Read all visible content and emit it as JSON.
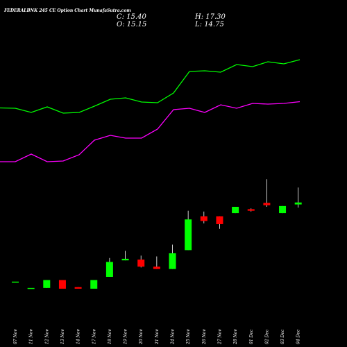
{
  "header": {
    "title": "FEDERALBNK 245 CE Option  Chart MunafaSutra.com",
    "close": "C: 15.40",
    "high": "H: 17.30",
    "open": "O: 15.15",
    "low": "L: 14.75"
  },
  "chart_data": {
    "type": "candlestick",
    "dates": [
      "07 Nov",
      "11 Nov",
      "12 Nov",
      "13 Nov",
      "14 Nov",
      "17 Nov",
      "18 Nov",
      "19 Nov",
      "20 Nov",
      "21 Nov",
      "24 Nov",
      "25 Nov",
      "26 Nov",
      "27 Nov",
      "28 Nov",
      "01 Dec",
      "02 Dec",
      "03 Dec",
      "04 Dec"
    ],
    "candles": [
      {
        "o": 5.35,
        "h": 5.35,
        "l": 5.35,
        "c": 5.35
      },
      {
        "o": 4.55,
        "h": 4.55,
        "l": 4.55,
        "c": 4.55
      },
      {
        "o": 4.55,
        "h": 5.55,
        "l": 4.55,
        "c": 5.55
      },
      {
        "o": 5.55,
        "h": 5.55,
        "l": 4.45,
        "c": 4.45
      },
      {
        "o": 4.65,
        "h": 4.65,
        "l": 4.45,
        "c": 4.45
      },
      {
        "o": 4.45,
        "h": 5.55,
        "l": 4.45,
        "c": 5.55
      },
      {
        "o": 5.95,
        "h": 8.35,
        "l": 5.95,
        "c": 7.85
      },
      {
        "o": 8.05,
        "h": 9.25,
        "l": 8.05,
        "c": 8.25
      },
      {
        "o": 8.15,
        "h": 8.65,
        "l": 7.15,
        "c": 7.25
      },
      {
        "o": 7.25,
        "h": 8.55,
        "l": 6.95,
        "c": 6.95
      },
      {
        "o": 6.95,
        "h": 10.05,
        "l": 6.95,
        "c": 8.95
      },
      {
        "o": 9.35,
        "h": 14.35,
        "l": 9.35,
        "c": 13.25
      },
      {
        "o": 13.65,
        "h": 14.25,
        "l": 12.75,
        "c": 13.05
      },
      {
        "o": 13.65,
        "h": 13.65,
        "l": 12.05,
        "c": 12.65
      },
      {
        "o": 14.05,
        "h": 14.85,
        "l": 14.05,
        "c": 14.85
      },
      {
        "o": 14.55,
        "h": 14.65,
        "l": 14.25,
        "c": 14.35
      },
      {
        "o": 15.35,
        "h": 18.35,
        "l": 14.85,
        "c": 15.05
      },
      {
        "o": 14.05,
        "h": 14.95,
        "l": 14.05,
        "c": 14.95
      },
      {
        "o": 15.15,
        "h": 17.3,
        "l": 14.75,
        "c": 15.4
      }
    ],
    "series": [
      {
        "color": "#00ff00",
        "values": [
          [
            0,
            155.5
          ],
          [
            22,
            156
          ],
          [
            45,
            162
          ],
          [
            68,
            154
          ],
          [
            91,
            163
          ],
          [
            114,
            162
          ],
          [
            136,
            153
          ],
          [
            159,
            143
          ],
          [
            181,
            141
          ],
          [
            204,
            147
          ],
          [
            227,
            148
          ],
          [
            250,
            134
          ],
          [
            273,
            103
          ],
          [
            295,
            102
          ],
          [
            318,
            104
          ],
          [
            341,
            93
          ],
          [
            364,
            96
          ],
          [
            386,
            89
          ],
          [
            409,
            92
          ],
          [
            432,
            86
          ]
        ]
      },
      {
        "color": "#ff00ff",
        "values": [
          [
            0,
            233
          ],
          [
            22,
            233
          ],
          [
            45,
            222
          ],
          [
            68,
            233
          ],
          [
            91,
            232
          ],
          [
            114,
            223
          ],
          [
            136,
            202
          ],
          [
            159,
            195
          ],
          [
            181,
            199
          ],
          [
            204,
            199
          ],
          [
            227,
            186
          ],
          [
            250,
            158
          ],
          [
            273,
            156
          ],
          [
            295,
            162
          ],
          [
            318,
            151
          ],
          [
            341,
            156
          ],
          [
            364,
            149
          ],
          [
            386,
            150
          ],
          [
            409,
            149
          ],
          [
            432,
            146.5
          ]
        ]
      }
    ],
    "price_scale": {
      "ref_price_a": 4.45,
      "ref_price_b": 14.85
    },
    "colors": {
      "up": "#00ff00",
      "down": "#ff0000",
      "background": "#000000"
    }
  }
}
